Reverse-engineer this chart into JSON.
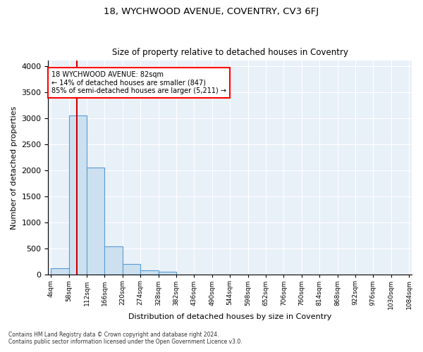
{
  "title1": "18, WYCHWOOD AVENUE, COVENTRY, CV3 6FJ",
  "title2": "Size of property relative to detached houses in Coventry",
  "xlabel": "Distribution of detached houses by size in Coventry",
  "ylabel": "Number of detached properties",
  "footnote1": "Contains HM Land Registry data © Crown copyright and database right 2024.",
  "footnote2": "Contains public sector information licensed under the Open Government Licence v3.0.",
  "bin_labels": [
    "4sqm",
    "58sqm",
    "112sqm",
    "166sqm",
    "220sqm",
    "274sqm",
    "328sqm",
    "382sqm",
    "436sqm",
    "490sqm",
    "544sqm",
    "598sqm",
    "652sqm",
    "706sqm",
    "760sqm",
    "814sqm",
    "868sqm",
    "922sqm",
    "976sqm",
    "1030sqm",
    "1084sqm"
  ],
  "bar_heights": [
    130,
    3050,
    2050,
    540,
    210,
    80,
    55,
    0,
    0,
    0,
    0,
    0,
    0,
    0,
    0,
    0,
    0,
    0,
    0,
    0
  ],
  "bar_color": "#cce0f0",
  "bar_edgecolor": "#5b9bd5",
  "property_line_x": 82,
  "annotation_line1": "18 WYCHWOOD AVENUE: 82sqm",
  "annotation_line2": "← 14% of detached houses are smaller (847)",
  "annotation_line3": "85% of semi-detached houses are larger (5,211) →",
  "annotation_box_color": "white",
  "annotation_box_edgecolor": "red",
  "vline_color": "#cc0000",
  "ylim": [
    0,
    4100
  ],
  "yticks": [
    0,
    500,
    1000,
    1500,
    2000,
    2500,
    3000,
    3500,
    4000
  ],
  "background_color": "#e8f0f8",
  "grid_color": "white"
}
